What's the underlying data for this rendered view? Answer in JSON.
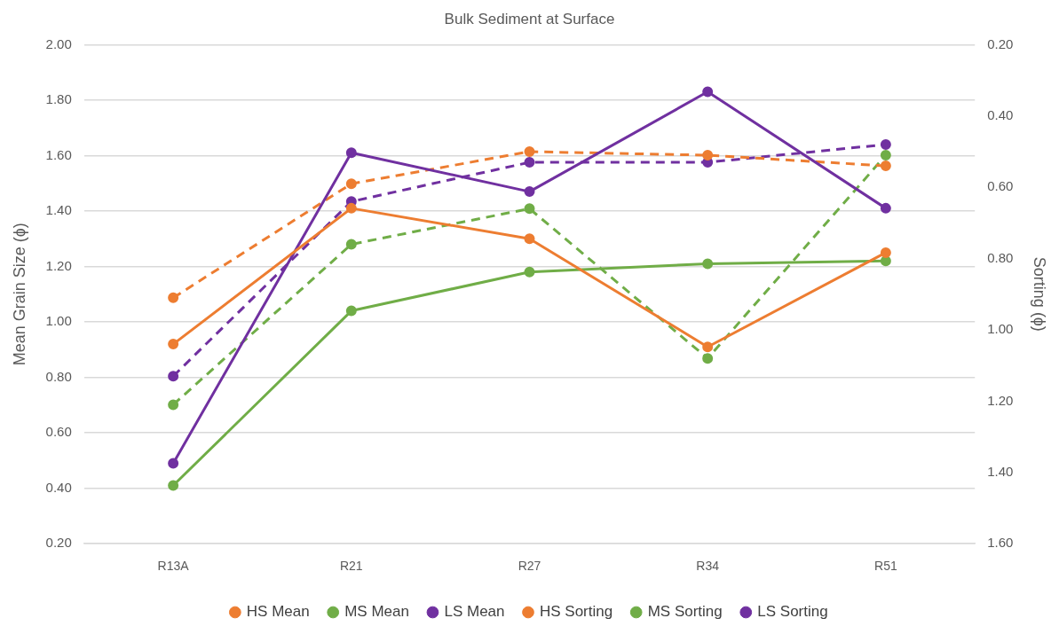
{
  "chart_data": {
    "type": "line",
    "title": "Bulk Sediment at Surface",
    "ylabel": "Mean Grain Size (ɸ)",
    "y2label": "Sorting (ɸ)",
    "categories": [
      "R13A",
      "R21",
      "R27",
      "R34",
      "R51"
    ],
    "series": [
      {
        "name": "HS Mean",
        "color": "#ed7d31",
        "values": [
          0.92,
          1.41,
          1.3,
          0.91,
          1.25
        ]
      },
      {
        "name": "MS Mean",
        "color": "#70ad47",
        "values": [
          0.41,
          1.04,
          1.18,
          1.21,
          1.22
        ]
      },
      {
        "name": "LS Mean",
        "color": "#7030a0",
        "values": [
          0.49,
          1.61,
          1.47,
          1.83,
          1.41
        ]
      },
      {
        "name": "HS Sorting",
        "color": "#ed7d31",
        "axis": "y2",
        "line_style": "dashed",
        "values": [
          0.91,
          0.59,
          0.5,
          0.51,
          0.54
        ]
      },
      {
        "name": "MS Sorting",
        "color": "#70ad47",
        "axis": "y2",
        "line_style": "dashed",
        "values": [
          1.21,
          0.76,
          0.66,
          1.08,
          0.51
        ]
      },
      {
        "name": "LS Sorting",
        "color": "#7030a0",
        "axis": "y2",
        "line_style": "dashed",
        "values": [
          1.13,
          0.64,
          0.53,
          0.53,
          0.48
        ]
      }
    ],
    "ylim": [
      0.2,
      2.0
    ],
    "yticks": [
      {
        "value": 0.2,
        "label": "0.20"
      },
      {
        "value": 0.4,
        "label": "0.40"
      },
      {
        "value": 0.6,
        "label": "0.60"
      },
      {
        "value": 0.8,
        "label": "0.80"
      },
      {
        "value": 1.0,
        "label": "1.00"
      },
      {
        "value": 1.2,
        "label": "1.20"
      },
      {
        "value": 1.4,
        "label": "1.40"
      },
      {
        "value": 1.6,
        "label": "1.60"
      },
      {
        "value": 1.8,
        "label": "1.80"
      },
      {
        "value": 2.0,
        "label": "2.00"
      }
    ],
    "y2lim": [
      1.6,
      0.2
    ],
    "y2ticks": [
      {
        "value": 0.2,
        "label": "0.20"
      },
      {
        "value": 0.4,
        "label": "0.40"
      },
      {
        "value": 0.6,
        "label": "0.60"
      },
      {
        "value": 0.8,
        "label": "0.80"
      },
      {
        "value": 1.0,
        "label": "1.00"
      },
      {
        "value": 1.2,
        "label": "1.20"
      },
      {
        "value": 1.4,
        "label": "1.40"
      },
      {
        "value": 1.6,
        "label": "1.60"
      }
    ],
    "grid": "y",
    "legend": "bottom",
    "marker": "circle",
    "line_style": "solid"
  }
}
